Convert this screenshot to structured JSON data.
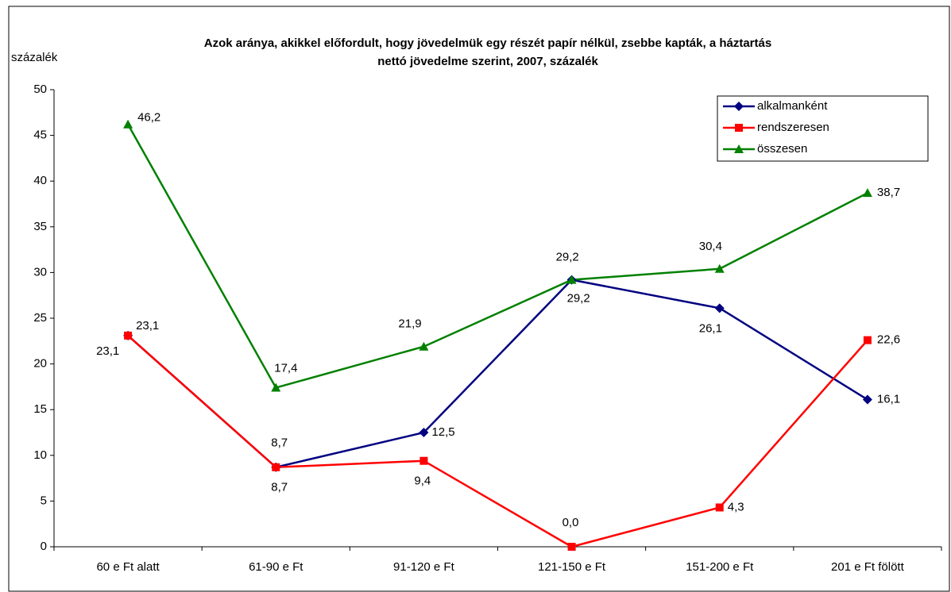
{
  "chart_data": {
    "type": "line",
    "title": "Azok aránya, akikkel előfordult, hogy jövedelmük egy részét papír nélkül, zsebbe kapták, a háztartás",
    "subtitle": "nettó jövedelme szerint, 2007, százalék",
    "y_label": "százalék",
    "categories": [
      "60 e Ft alatt",
      "61-90 e Ft",
      "91-120 e Ft",
      "121-150 e Ft",
      "151-200 e Ft",
      "201 e Ft fölött"
    ],
    "series": [
      {
        "name": "alkalmanként",
        "color": "#000080",
        "marker": "diamond",
        "values": [
          23.1,
          8.7,
          12.5,
          29.2,
          26.1,
          16.1
        ],
        "value_labels": [
          "23,1",
          "8,7",
          "12,5",
          "29,2",
          "26,1",
          "16,1"
        ]
      },
      {
        "name": "rendszeresen",
        "color": "#ff0000",
        "marker": "square",
        "values": [
          23.1,
          8.7,
          9.4,
          0.0,
          4.3,
          22.6
        ],
        "value_labels": [
          "23,1",
          "8,7",
          "9,4",
          "0,0",
          "4,3",
          "22,6"
        ]
      },
      {
        "name": "összesen",
        "color": "#008000",
        "marker": "triangle",
        "values": [
          46.2,
          17.4,
          21.9,
          29.2,
          30.4,
          38.7
        ],
        "value_labels": [
          "46,2",
          "17,4",
          "21,9",
          "29,2",
          "30,4",
          "38,7"
        ]
      }
    ],
    "ylim": [
      0,
      50
    ],
    "yticks": [
      0,
      5,
      10,
      15,
      20,
      25,
      30,
      35,
      40,
      45,
      50
    ],
    "grid": false,
    "legend": "upper right"
  }
}
